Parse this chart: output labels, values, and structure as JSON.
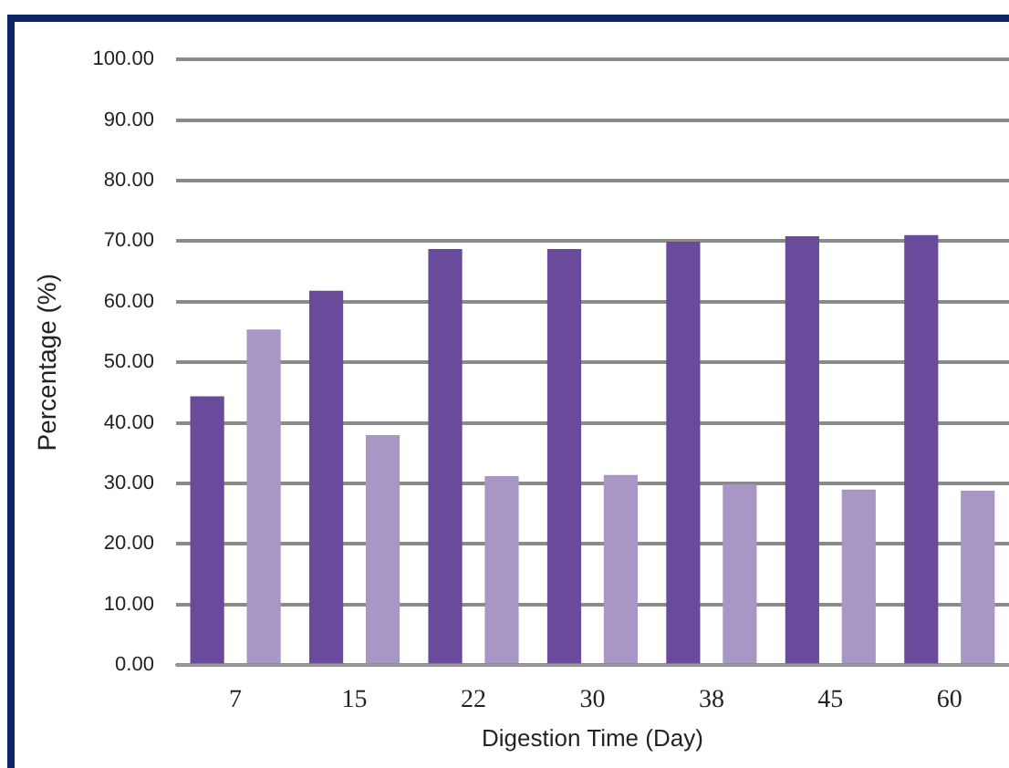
{
  "chart_data": {
    "type": "bar",
    "xlabel": "Digestion Time (Day)",
    "ylabel": "Percentage (%)",
    "categories": [
      "7",
      "15",
      "22",
      "30",
      "38",
      "45",
      "60"
    ],
    "series": [
      {
        "color": "#6a4a9a",
        "values": [
          44.4,
          61.8,
          68.7,
          68.7,
          69.9,
          70.8,
          71.0
        ]
      },
      {
        "color": "#a896c4",
        "values": [
          55.4,
          38.0,
          31.2,
          31.4,
          29.8,
          29.0,
          28.8
        ]
      }
    ],
    "ylim": [
      0,
      100
    ],
    "yticks": [
      {
        "value": 0,
        "label": "0.00"
      },
      {
        "value": 10,
        "label": "10.00"
      },
      {
        "value": 20,
        "label": "20.00"
      },
      {
        "value": 30,
        "label": "30.00"
      },
      {
        "value": 40,
        "label": "40.00"
      },
      {
        "value": 50,
        "label": "50.00"
      },
      {
        "value": 60,
        "label": "60.00"
      },
      {
        "value": 70,
        "label": "70.00"
      },
      {
        "value": 80,
        "label": "80.00"
      },
      {
        "value": 90,
        "label": "90.00"
      },
      {
        "value": 100,
        "label": "100.00"
      }
    ],
    "grid": "y",
    "legend": false
  }
}
